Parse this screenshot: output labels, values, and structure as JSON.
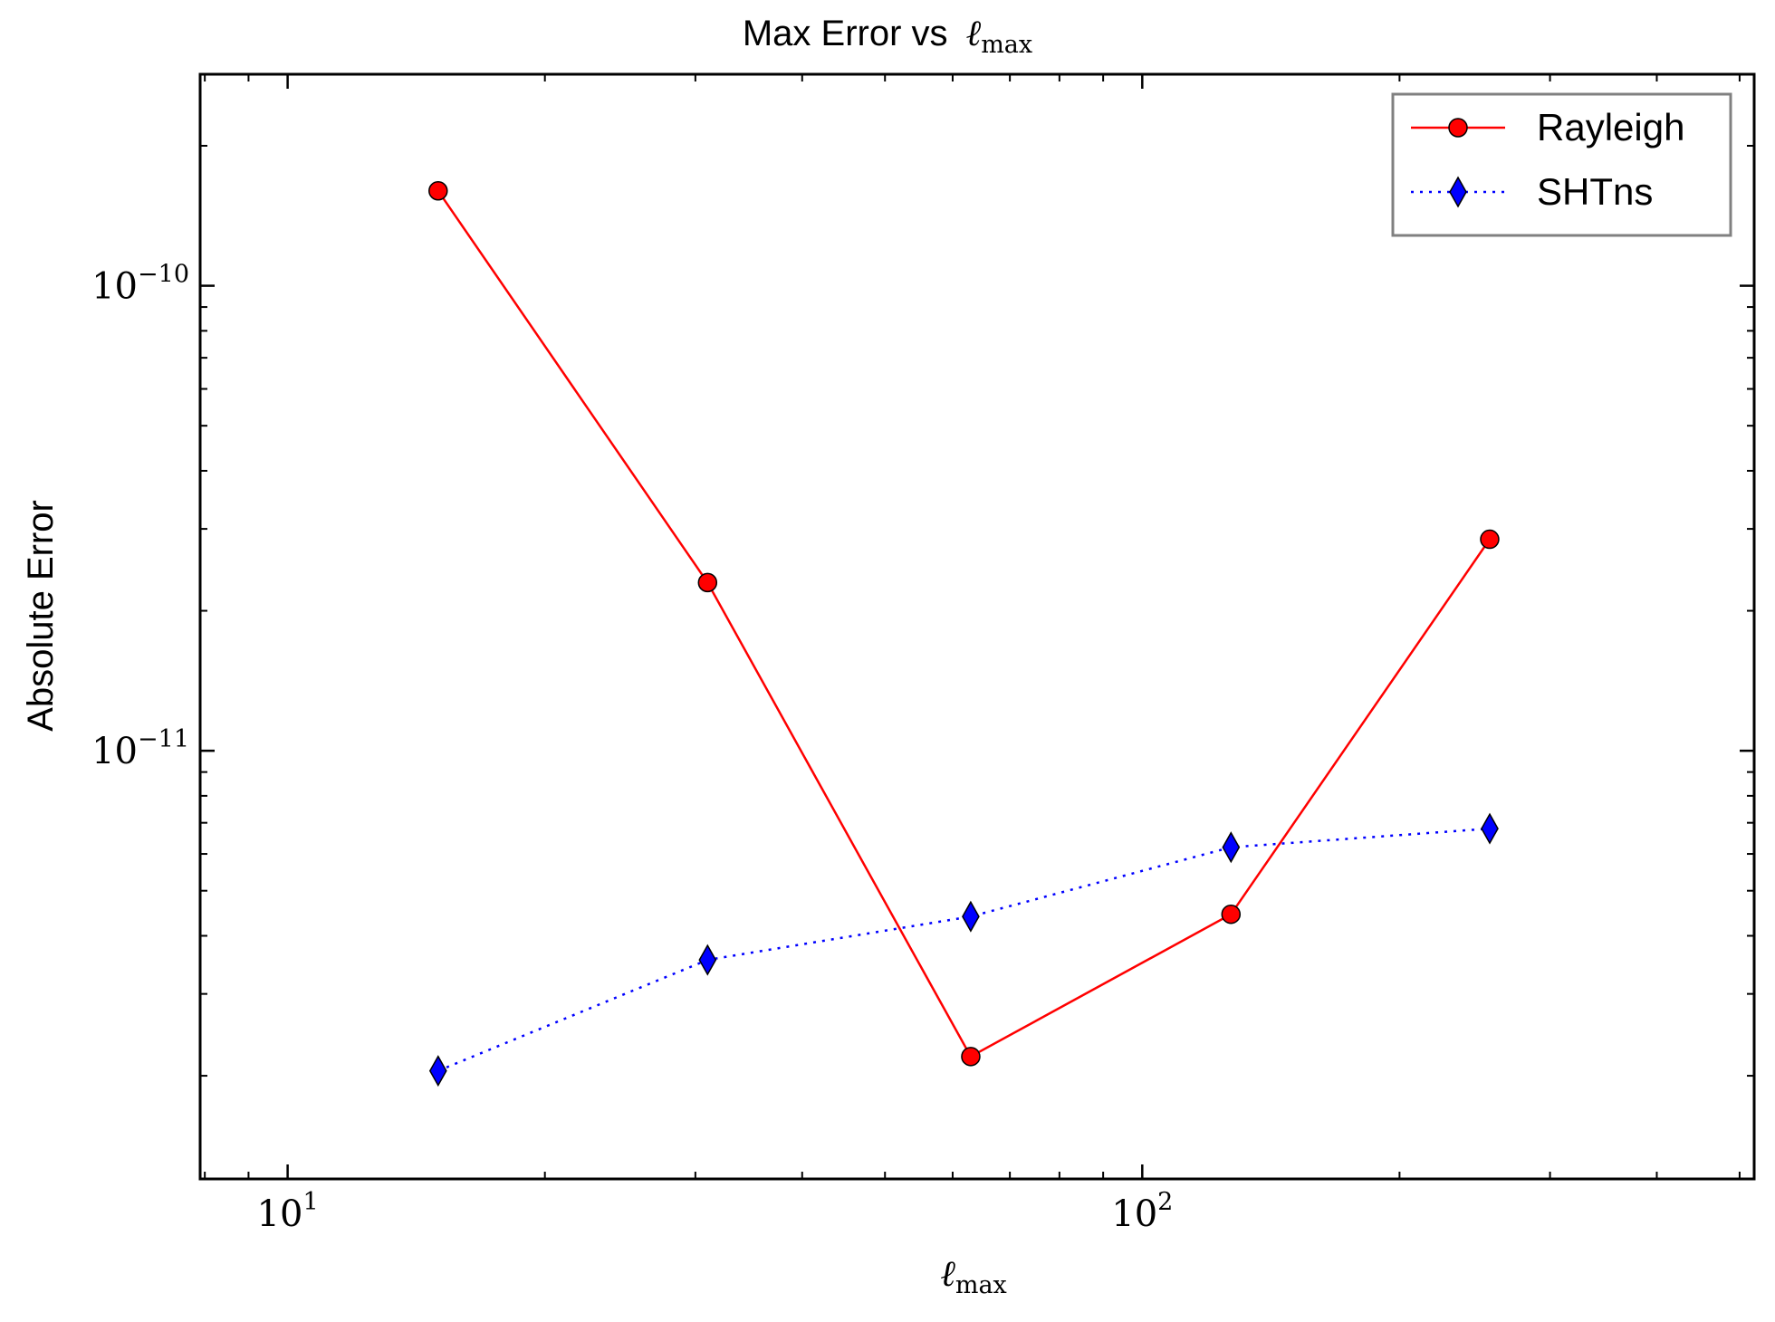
{
  "chart_data": {
    "type": "line",
    "title": "Max Error vs",
    "title_math": {
      "base": "ℓ",
      "sub": "max"
    },
    "xlabel": {
      "base": "ℓ",
      "sub": "max"
    },
    "ylabel": "Absolute Error",
    "x_scale": "log",
    "y_scale": "log",
    "xlim": [
      7.9,
      520
    ],
    "ylim": [
      1.2e-12,
      2.85e-10
    ],
    "x_ticks": [
      {
        "value": 10,
        "base": "10",
        "exp": "1"
      },
      {
        "value": 100,
        "base": "10",
        "exp": "2"
      }
    ],
    "y_ticks": [
      {
        "value": 1e-11,
        "base": "10",
        "exp": "−11"
      },
      {
        "value": 1e-10,
        "base": "10",
        "exp": "−10"
      }
    ],
    "grid": false,
    "legend_position": "top-right",
    "series": [
      {
        "name": "Rayleigh",
        "color": "#ff0000",
        "line_style": "solid",
        "marker": "circle",
        "x": [
          15,
          31,
          63,
          127,
          255
        ],
        "y": [
          1.6e-10,
          2.3e-11,
          2.2e-12,
          4.45e-12,
          2.85e-11
        ]
      },
      {
        "name": "SHTns",
        "color": "#0000ff",
        "line_style": "dotted",
        "marker": "diamond",
        "x": [
          15,
          31,
          63,
          127,
          255
        ],
        "y": [
          2.05e-12,
          3.55e-12,
          4.4e-12,
          6.2e-12,
          6.8e-12
        ]
      }
    ]
  }
}
